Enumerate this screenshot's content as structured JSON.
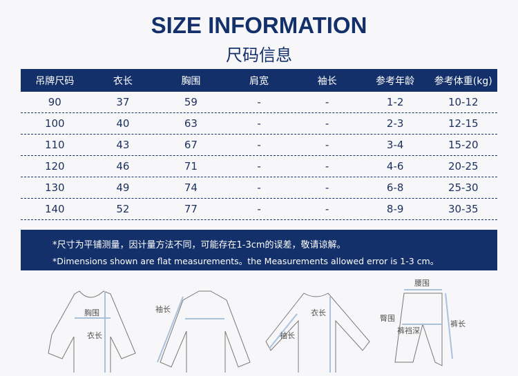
{
  "title": "SIZE INFORMATION",
  "subtitle": "尺码信息",
  "table": {
    "headers": [
      "吊牌尺码",
      "衣长",
      "胸围",
      "肩宽",
      "袖长",
      "参考年龄",
      "参考体重(kg)"
    ],
    "rows": [
      [
        "90",
        "37",
        "59",
        "-",
        "-",
        "1-2",
        "10-12"
      ],
      [
        "100",
        "40",
        "63",
        "-",
        "-",
        "2-3",
        "12-15"
      ],
      [
        "110",
        "43",
        "67",
        "-",
        "-",
        "3-4",
        "15-20"
      ],
      [
        "120",
        "46",
        "71",
        "-",
        "-",
        "4-6",
        "20-25"
      ],
      [
        "130",
        "49",
        "74",
        "-",
        "-",
        "6-8",
        "25-30"
      ],
      [
        "140",
        "52",
        "77",
        "-",
        "-",
        "8-9",
        "30-35"
      ]
    ]
  },
  "note": {
    "cn": "*尺寸为平铺测量，因计量方法不同，可能存在1-3cm的误差，敬请谅解。",
    "en": "*Dimensions shown are flat measurements。the Measurements allowed error is 1-3 cm。"
  },
  "diagrams": {
    "tshirt": [
      "胸围",
      "衣长"
    ],
    "shirt": [
      "袖长"
    ],
    "sweater": [
      "衣长",
      "袖长"
    ],
    "pants": [
      "腰围",
      "臀围",
      "裤裆深",
      "裤长"
    ]
  }
}
